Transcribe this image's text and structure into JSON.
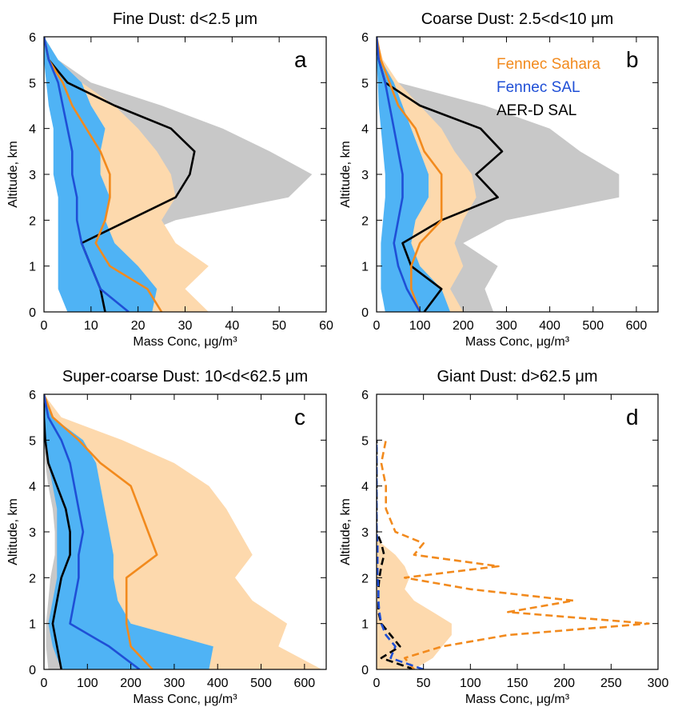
{
  "chart_data": [
    {
      "type": "line",
      "panel_letter": "a",
      "title": "Fine Dust: d<2.5 μm",
      "xlabel": "Mass Conc, μg/m³",
      "ylabel": "Altitude, km",
      "xlim": [
        0,
        60
      ],
      "ylim": [
        0,
        6
      ],
      "xticks": [
        0,
        10,
        20,
        30,
        40,
        50,
        60
      ],
      "yticks": [
        0,
        1,
        2,
        3,
        4,
        5,
        6
      ],
      "altitude": [
        0.0,
        0.5,
        1.0,
        1.5,
        2.0,
        2.5,
        3.0,
        3.5,
        4.0,
        4.5,
        5.0,
        5.5,
        6.0
      ],
      "series": [
        {
          "name": "Fennec Sahara",
          "color": "#f28a1d",
          "band_color": "#fdd9ad",
          "median": [
            25,
            22,
            14,
            11,
            13,
            14,
            14,
            12,
            9,
            6,
            4,
            1,
            0
          ],
          "low": [
            12,
            8,
            6,
            6,
            7,
            9,
            9,
            8,
            6,
            4,
            2,
            0.5,
            0
          ],
          "high": [
            35,
            30,
            35,
            28,
            25,
            28,
            27,
            24,
            20,
            15,
            8,
            3,
            0
          ]
        },
        {
          "name": "Fennec SAL",
          "color": "#1f4fd6",
          "band_color": "#4fb3f5",
          "median": [
            18,
            12,
            10,
            8,
            7,
            7,
            6,
            6,
            5,
            4,
            3,
            1,
            0
          ],
          "low": [
            5,
            3,
            3,
            3,
            3,
            3,
            2,
            2,
            2,
            1,
            0.5,
            0,
            0
          ],
          "high": [
            23,
            24,
            20,
            15,
            13,
            14,
            12,
            12,
            13,
            10,
            8,
            3,
            0
          ]
        },
        {
          "name": "AER-D SAL",
          "color": "#000000",
          "band_color": "#c8c8c8",
          "median": [
            13,
            12,
            10,
            8,
            18,
            28,
            31,
            32,
            27,
            15,
            5,
            1,
            0
          ],
          "low": [
            5,
            5,
            4,
            4,
            8,
            15,
            18,
            18,
            15,
            8,
            2,
            0.5,
            0
          ],
          "high": [
            22,
            20,
            18,
            16,
            28,
            52,
            57,
            48,
            38,
            25,
            10,
            3,
            0
          ]
        }
      ]
    },
    {
      "type": "line",
      "panel_letter": "b",
      "title": "Coarse Dust: 2.5<d<10 μm",
      "xlabel": "Mass Conc, μg/m³",
      "ylabel": "Altitude, km",
      "xlim": [
        0,
        650
      ],
      "ylim": [
        0,
        6
      ],
      "xticks": [
        0,
        100,
        200,
        300,
        400,
        500,
        600
      ],
      "yticks": [
        0,
        1,
        2,
        3,
        4,
        5,
        6
      ],
      "altitude": [
        0.0,
        0.5,
        1.0,
        1.5,
        2.0,
        2.5,
        3.0,
        3.5,
        4.0,
        4.5,
        5.0,
        5.5,
        6.0
      ],
      "series": [
        {
          "name": "Fennec Sahara",
          "color": "#f28a1d",
          "band_color": "#fdd9ad",
          "median": [
            100,
            80,
            80,
            100,
            150,
            150,
            150,
            110,
            90,
            50,
            30,
            10,
            0
          ],
          "low": [
            50,
            40,
            40,
            50,
            80,
            90,
            90,
            60,
            40,
            20,
            10,
            3,
            0
          ],
          "high": [
            200,
            170,
            200,
            180,
            200,
            230,
            220,
            180,
            150,
            100,
            50,
            15,
            0
          ]
        },
        {
          "name": "Fennec SAL",
          "color": "#1f4fd6",
          "band_color": "#4fb3f5",
          "median": [
            100,
            70,
            50,
            40,
            50,
            60,
            60,
            50,
            40,
            30,
            20,
            5,
            0
          ],
          "low": [
            20,
            10,
            10,
            10,
            15,
            20,
            20,
            15,
            10,
            5,
            3,
            0,
            0
          ],
          "high": [
            170,
            150,
            100,
            80,
            90,
            120,
            120,
            100,
            80,
            60,
            40,
            10,
            0
          ]
        },
        {
          "name": "AER-D SAL",
          "color": "#000000",
          "band_color": "#c8c8c8",
          "median": [
            110,
            150,
            80,
            60,
            150,
            280,
            230,
            290,
            240,
            100,
            20,
            5,
            0
          ],
          "low": [
            40,
            50,
            40,
            30,
            80,
            150,
            130,
            150,
            120,
            50,
            10,
            2,
            0
          ],
          "high": [
            270,
            250,
            280,
            200,
            300,
            560,
            560,
            470,
            400,
            250,
            50,
            10,
            0
          ]
        }
      ],
      "legend": {
        "position": "top-right",
        "entries": [
          "Fennec Sahara",
          "Fennec SAL",
          "AER-D SAL"
        ]
      }
    },
    {
      "type": "line",
      "panel_letter": "c",
      "title": "Super-coarse Dust: 10<d<62.5 μm",
      "xlabel": "Mass Conc, μg/m³",
      "ylabel": "Altitude, km",
      "xlim": [
        0,
        650
      ],
      "ylim": [
        0,
        6
      ],
      "xticks": [
        0,
        100,
        200,
        300,
        400,
        500,
        600
      ],
      "yticks": [
        0,
        1,
        2,
        3,
        4,
        5,
        6
      ],
      "altitude": [
        0.0,
        0.5,
        1.0,
        1.5,
        2.0,
        2.5,
        3.0,
        3.5,
        4.0,
        4.5,
        5.0,
        5.5,
        6.0
      ],
      "series": [
        {
          "name": "Fennec Sahara",
          "color": "#f28a1d",
          "band_color": "#fdd9ad",
          "median": [
            250,
            200,
            190,
            190,
            190,
            260,
            240,
            220,
            200,
            130,
            80,
            20,
            0
          ],
          "low": [
            100,
            80,
            80,
            80,
            100,
            140,
            130,
            120,
            110,
            70,
            40,
            10,
            0
          ],
          "high": [
            640,
            540,
            560,
            480,
            440,
            480,
            450,
            420,
            380,
            300,
            180,
            40,
            0
          ]
        },
        {
          "name": "Fennec SAL",
          "color": "#1f4fd6",
          "band_color": "#4fb3f5",
          "median": [
            220,
            150,
            60,
            70,
            80,
            80,
            90,
            80,
            70,
            60,
            40,
            10,
            0
          ],
          "low": [
            40,
            20,
            10,
            20,
            30,
            30,
            30,
            30,
            20,
            10,
            5,
            0,
            0
          ],
          "high": [
            380,
            390,
            200,
            170,
            160,
            160,
            150,
            140,
            130,
            120,
            90,
            20,
            0
          ]
        },
        {
          "name": "AER-D SAL",
          "color": "#000000",
          "band_color": "#c8c8c8",
          "median": [
            40,
            30,
            20,
            30,
            40,
            60,
            60,
            50,
            30,
            10,
            3,
            0,
            0
          ],
          "low": [
            10,
            5,
            5,
            10,
            15,
            25,
            25,
            20,
            10,
            3,
            0,
            0,
            0
          ],
          "high": [
            120,
            100,
            80,
            100,
            120,
            140,
            130,
            110,
            80,
            40,
            10,
            0,
            0
          ]
        }
      ]
    },
    {
      "type": "line",
      "panel_letter": "d",
      "title": "Giant Dust: d>62.5 μm",
      "xlabel": "Mass Conc, μg/m³",
      "ylabel": "Altitude, km",
      "xlim": [
        0,
        300
      ],
      "ylim": [
        0,
        6
      ],
      "xticks": [
        0,
        50,
        100,
        150,
        200,
        250,
        300
      ],
      "yticks": [
        0,
        1,
        2,
        3,
        4,
        5,
        6
      ],
      "dashed": true,
      "altitude": [
        0.0,
        0.25,
        0.5,
        0.75,
        1.0,
        1.25,
        1.5,
        1.75,
        2.0,
        2.25,
        2.5,
        2.75,
        3.0,
        3.5,
        4.0,
        4.5,
        5.0
      ],
      "series": [
        {
          "name": "Fennec Sahara",
          "color": "#f28a1d",
          "band_color": "#fdd9ad",
          "median": [
            40,
            30,
            70,
            140,
            290,
            140,
            210,
            100,
            30,
            130,
            40,
            50,
            20,
            10,
            10,
            5,
            10
          ],
          "low": [
            0,
            0,
            0,
            0,
            0,
            0,
            0,
            0,
            0,
            0,
            0,
            0,
            0,
            0,
            0,
            0,
            0
          ],
          "high": [
            40,
            60,
            70,
            80,
            80,
            60,
            40,
            30,
            35,
            30,
            20,
            5,
            0,
            0,
            0,
            0,
            0
          ]
        },
        {
          "name": "Fennec SAL",
          "color": "#1f4fd6",
          "band_color": "#4fb3f5",
          "median": [
            50,
            15,
            20,
            10,
            5,
            3,
            2,
            2,
            1,
            1,
            1,
            1,
            0,
            0,
            0,
            0,
            0
          ],
          "low": [
            0,
            0,
            0,
            0,
            0,
            0,
            0,
            0,
            0,
            0,
            0,
            0,
            0,
            0,
            0,
            0,
            0
          ],
          "high": [
            0,
            0,
            0,
            0,
            0,
            0,
            0,
            0,
            0,
            0,
            0,
            0,
            0,
            0,
            0,
            0,
            0
          ]
        },
        {
          "name": "AER-D SAL",
          "color": "#000000",
          "band_color": "#c8c8c8",
          "median": [
            40,
            5,
            25,
            15,
            5,
            2,
            2,
            2,
            3,
            5,
            8,
            5,
            0,
            0,
            0,
            0,
            0
          ],
          "low": [
            0,
            0,
            0,
            0,
            0,
            0,
            0,
            0,
            0,
            0,
            0,
            0,
            0,
            0,
            0,
            0,
            0
          ],
          "high": [
            20,
            5,
            0,
            0,
            0,
            0,
            0,
            0,
            0,
            0,
            0,
            0,
            0,
            0,
            0,
            0,
            0
          ]
        }
      ]
    }
  ]
}
